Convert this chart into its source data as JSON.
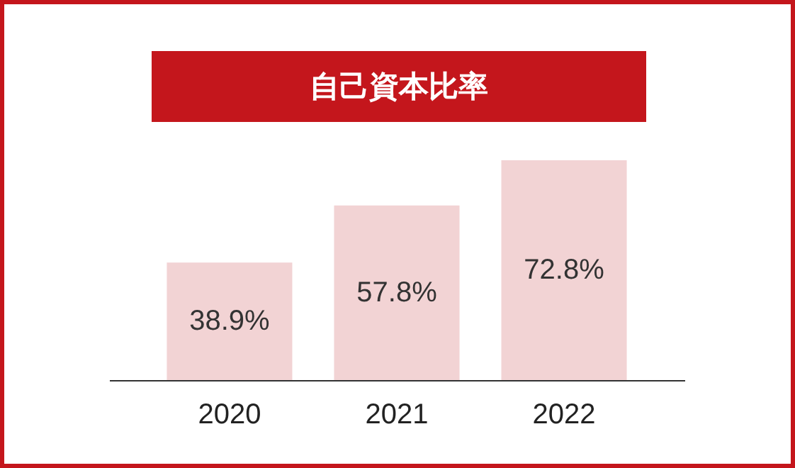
{
  "chart_data": {
    "type": "bar",
    "title": "自己資本比率",
    "categories": [
      "2020",
      "2021",
      "2022"
    ],
    "values": [
      38.9,
      57.8,
      72.8
    ],
    "value_labels": [
      "38.9%",
      "57.8%",
      "72.8%"
    ],
    "color": "#f2d3d4",
    "tick_labels": "x"
  }
}
